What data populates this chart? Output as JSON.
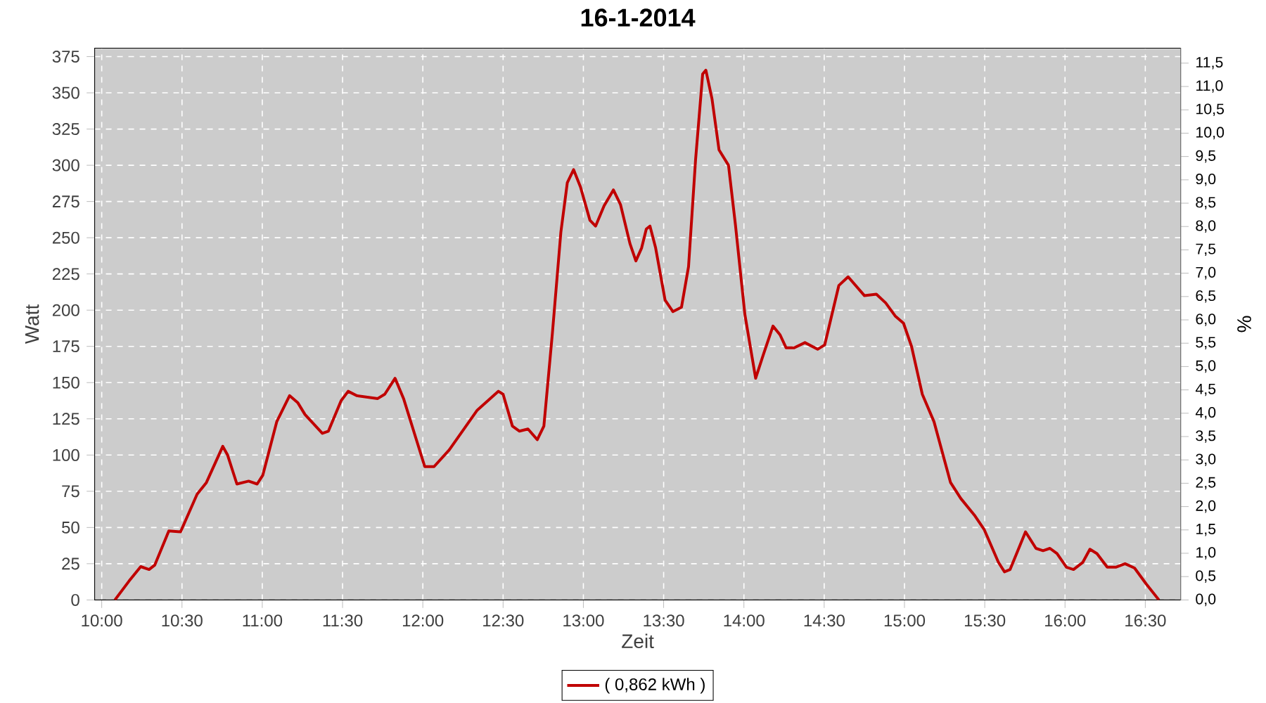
{
  "chart_data": {
    "type": "line",
    "title": "16-1-2014",
    "xlabel": "Zeit",
    "ylabel": "Watt",
    "y2label": "%",
    "x": [
      10.082,
      10.17,
      10.243,
      10.295,
      10.33,
      10.418,
      10.491,
      10.594,
      10.652,
      10.754,
      10.784,
      10.842,
      10.915,
      10.968,
      11.003,
      11.09,
      11.17,
      11.222,
      11.266,
      11.374,
      11.412,
      11.491,
      11.535,
      11.588,
      11.719,
      11.763,
      11.827,
      11.88,
      12.012,
      12.07,
      12.164,
      12.339,
      12.471,
      12.5,
      12.558,
      12.602,
      12.655,
      12.713,
      12.754,
      12.807,
      12.86,
      12.9,
      12.939,
      12.982,
      13.041,
      13.076,
      13.129,
      13.187,
      13.231,
      13.29,
      13.327,
      13.363,
      13.392,
      13.415,
      13.45,
      13.509,
      13.558,
      13.611,
      13.655,
      13.699,
      13.743,
      13.763,
      13.801,
      13.845,
      13.904,
      13.947,
      14.006,
      14.073,
      14.123,
      14.181,
      14.225,
      14.263,
      14.313,
      14.38,
      14.459,
      14.503,
      14.591,
      14.649,
      14.751,
      14.825,
      14.883,
      14.942,
      14.994,
      15.044,
      15.111,
      15.184,
      15.287,
      15.351,
      15.439,
      15.497,
      15.585,
      15.623,
      15.658,
      15.754,
      15.819,
      15.863,
      15.906,
      15.95,
      16.009,
      16.053,
      16.111,
      16.155,
      16.199,
      16.263,
      16.316,
      16.374,
      16.433,
      16.506,
      16.585
    ],
    "series": [
      {
        "name": "( 0,862 kWh )",
        "color": "#c00000",
        "values": [
          0,
          13,
          23,
          21,
          24,
          47.6,
          47,
          73,
          81,
          106,
          100,
          80,
          82,
          80,
          86,
          123,
          141,
          136,
          128,
          115,
          116.5,
          137.5,
          144,
          141,
          139,
          142,
          153,
          139,
          92,
          92,
          103.5,
          131,
          144,
          142,
          120,
          116.5,
          118,
          110.6,
          120,
          184,
          254,
          288,
          297,
          285,
          262,
          258,
          272,
          283,
          273,
          246,
          234,
          243,
          256,
          258,
          243,
          207,
          199,
          202,
          230,
          304,
          363,
          365.6,
          346,
          310.6,
          300,
          259,
          197,
          153,
          170,
          189,
          183,
          174,
          174,
          177.6,
          173,
          176,
          217,
          223,
          210,
          211,
          205,
          196,
          191,
          175,
          142,
          123,
          81,
          70,
          58,
          48.5,
          26,
          19.4,
          21,
          47,
          35.6,
          34,
          35.6,
          32,
          22.6,
          21,
          26,
          35,
          32,
          22.6,
          22.6,
          25,
          22,
          11,
          0
        ]
      }
    ],
    "xlim": [
      9.956,
      16.72
    ],
    "ylim": [
      0,
      380.8
    ],
    "y2lim": [
      0,
      11.82
    ],
    "xticks": [
      {
        "value": 10,
        "label": "10:00"
      },
      {
        "value": 10.5,
        "label": "10:30"
      },
      {
        "value": 11,
        "label": "11:00"
      },
      {
        "value": 11.5,
        "label": "11:30"
      },
      {
        "value": 12,
        "label": "12:00"
      },
      {
        "value": 12.5,
        "label": "12:30"
      },
      {
        "value": 13,
        "label": "13:00"
      },
      {
        "value": 13.5,
        "label": "13:30"
      },
      {
        "value": 14,
        "label": "14:00"
      },
      {
        "value": 14.5,
        "label": "14:30"
      },
      {
        "value": 15,
        "label": "15:00"
      },
      {
        "value": 15.5,
        "label": "15:30"
      },
      {
        "value": 16,
        "label": "16:00"
      },
      {
        "value": 16.5,
        "label": "16:30"
      }
    ],
    "yticks": [
      0,
      25,
      50,
      75,
      100,
      125,
      150,
      175,
      200,
      225,
      250,
      275,
      300,
      325,
      350,
      375
    ],
    "y2ticks": [
      {
        "value": 0,
        "label": "0,0"
      },
      {
        "value": 0.5,
        "label": "0,5"
      },
      {
        "value": 1,
        "label": "1,0"
      },
      {
        "value": 1.5,
        "label": "1,5"
      },
      {
        "value": 2,
        "label": "2,0"
      },
      {
        "value": 2.5,
        "label": "2,5"
      },
      {
        "value": 3,
        "label": "3,0"
      },
      {
        "value": 3.5,
        "label": "3,5"
      },
      {
        "value": 4,
        "label": "4,0"
      },
      {
        "value": 4.5,
        "label": "4,5"
      },
      {
        "value": 5,
        "label": "5,0"
      },
      {
        "value": 5.5,
        "label": "5,5"
      },
      {
        "value": 6,
        "label": "6,0"
      },
      {
        "value": 6.5,
        "label": "6,5"
      },
      {
        "value": 7,
        "label": "7,0"
      },
      {
        "value": 7.5,
        "label": "7,5"
      },
      {
        "value": 8,
        "label": "8,0"
      },
      {
        "value": 8.5,
        "label": "8,5"
      },
      {
        "value": 9,
        "label": "9,0"
      },
      {
        "value": 9.5,
        "label": "9,5"
      },
      {
        "value": 10,
        "label": "10,0"
      },
      {
        "value": 10.5,
        "label": "10,5"
      },
      {
        "value": 11,
        "label": "11,0"
      },
      {
        "value": 11.5,
        "label": "11,5"
      }
    ],
    "grid": true,
    "legend": "bottom"
  }
}
